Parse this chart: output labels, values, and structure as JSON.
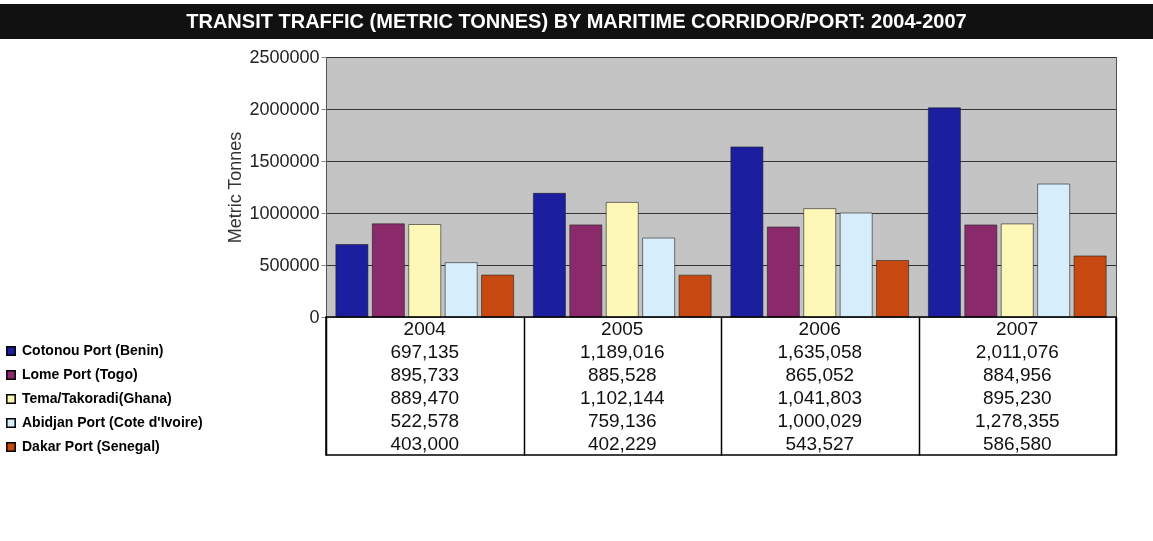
{
  "chart_data": {
    "type": "bar",
    "title": "TRANSIT TRAFFIC (METRIC TONNES) BY MARITIME CORRIDOR/PORT: 2004-2007",
    "ylabel": "Metric Tonnes",
    "categories": [
      "2004",
      "2005",
      "2006",
      "2007"
    ],
    "series": [
      {
        "name": "Cotonou Port (Benin)",
        "color": "#1c1ea0",
        "values": [
          697135,
          1189016,
          1635058,
          2011076
        ],
        "value_labels": [
          "697,135",
          "1,189,016",
          "1,635,058",
          "2,011,076"
        ]
      },
      {
        "name": "Lome Port (Togo)",
        "color": "#8a2a6a",
        "values": [
          895733,
          885528,
          865052,
          884956
        ],
        "value_labels": [
          "895,733",
          "885,528",
          "865,052",
          "884,956"
        ]
      },
      {
        "name": "Tema/Takoradi(Ghana)",
        "color": "#fdf7b8",
        "values": [
          889470,
          1102144,
          1041803,
          895230
        ],
        "value_labels": [
          "889,470",
          "1,102,144",
          "1,041,803",
          "895,230"
        ]
      },
      {
        "name": "Abidjan Port (Cote d'Ivoire)",
        "color": "#d6eefb",
        "values": [
          522578,
          759136,
          1000029,
          1278355
        ],
        "value_labels": [
          "522,578",
          "759,136",
          "1,000,029",
          "1,278,355"
        ]
      },
      {
        "name": "Dakar Port (Senegal)",
        "color": "#c84812",
        "values": [
          403000,
          402229,
          543527,
          586580
        ],
        "value_labels": [
          "403,000",
          "402,229",
          "543,527",
          "586,580"
        ]
      }
    ],
    "ylim": [
      0,
      2500000
    ],
    "yticks": [
      0,
      500000,
      1000000,
      1500000,
      2000000,
      2500000
    ],
    "grid": "y",
    "legend": "bottom left"
  }
}
